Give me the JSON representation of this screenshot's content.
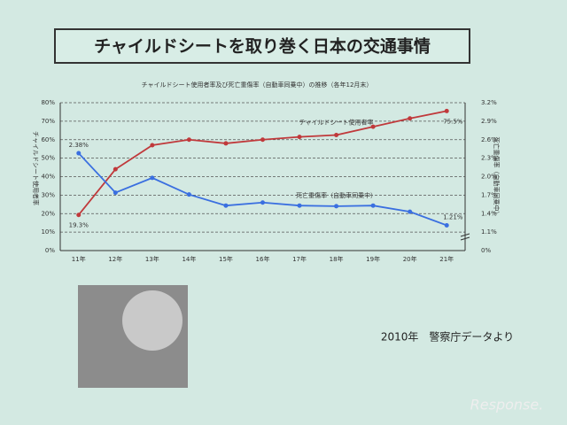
{
  "slide_title": "チャイルドシートを取り巻く日本の交通事情",
  "source_note": "2010年　警察庁データより",
  "watermark": "Response.",
  "chart_data": {
    "type": "line",
    "title": "チャイルドシート使用者率及び死亡重傷率（自動車同乗中）の推移（各年12月末）",
    "y_axis_label": "チャイルドシート使用者率",
    "y2_axis_label": "死亡重傷率（自動車同乗中）",
    "categories": [
      "11年",
      "12年",
      "13年",
      "14年",
      "15年",
      "16年",
      "17年",
      "18年",
      "19年",
      "20年",
      "21年"
    ],
    "ylim": [
      0,
      80
    ],
    "yticks": [
      {
        "value": 0,
        "label": "0%"
      },
      {
        "value": 10,
        "label": "10%"
      },
      {
        "value": 20,
        "label": "20%"
      },
      {
        "value": 30,
        "label": "30%"
      },
      {
        "value": 40,
        "label": "40%"
      },
      {
        "value": 50,
        "label": "50%"
      },
      {
        "value": 60,
        "label": "60%"
      },
      {
        "value": 70,
        "label": "70%"
      },
      {
        "value": 80,
        "label": "80%"
      }
    ],
    "y2lim": [
      0.8,
      3.2
    ],
    "y2ticks": [
      {
        "value": 1.1,
        "label": "1.1%"
      },
      {
        "value": 1.4,
        "label": "1.4%"
      },
      {
        "value": 1.7,
        "label": "1.7%"
      },
      {
        "value": 2.0,
        "label": "2.0%"
      },
      {
        "value": 2.3,
        "label": "2.3%"
      },
      {
        "value": 2.6,
        "label": "2.6%"
      },
      {
        "value": 2.9,
        "label": "2.9%"
      },
      {
        "value": 3.2,
        "label": "3.2%"
      }
    ],
    "y2_bottom_label": "0%",
    "grid": true,
    "series": [
      {
        "name": "チャイルドシート使用者率",
        "color": "#c0393b",
        "values": [
          19.3,
          44,
          57,
          60,
          58,
          60,
          61.5,
          62.5,
          67,
          71.5,
          75.5
        ],
        "value_labels": [
          "19.3%",
          null,
          null,
          null,
          null,
          null,
          null,
          null,
          null,
          null,
          "75.5%"
        ]
      },
      {
        "name": "死亡重傷率（自動車同乗中）",
        "color": "#3a6fe0",
        "axis": "y2",
        "values": [
          2.38,
          1.74,
          1.98,
          1.71,
          1.53,
          1.58,
          1.53,
          1.52,
          1.53,
          1.43,
          1.21
        ],
        "value_labels": [
          "2.38%",
          null,
          null,
          null,
          null,
          null,
          null,
          null,
          null,
          null,
          "1.21%"
        ]
      }
    ]
  }
}
